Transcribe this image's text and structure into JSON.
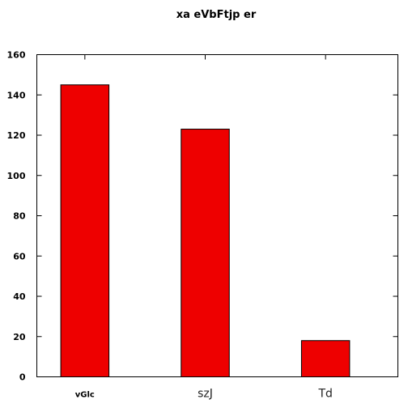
{
  "chart_data": {
    "type": "bar",
    "title": "xa eVbFtjp er",
    "categories": [
      "vGlc",
      "szJ",
      "Td"
    ],
    "values": [
      145,
      123,
      18
    ],
    "ylim": [
      0,
      160
    ],
    "yticks": [
      0,
      20,
      40,
      60,
      80,
      100,
      120,
      140,
      160
    ],
    "xlabel": "",
    "ylabel": "",
    "bar_color": "#ee0000",
    "grid": false,
    "legend": "none"
  }
}
